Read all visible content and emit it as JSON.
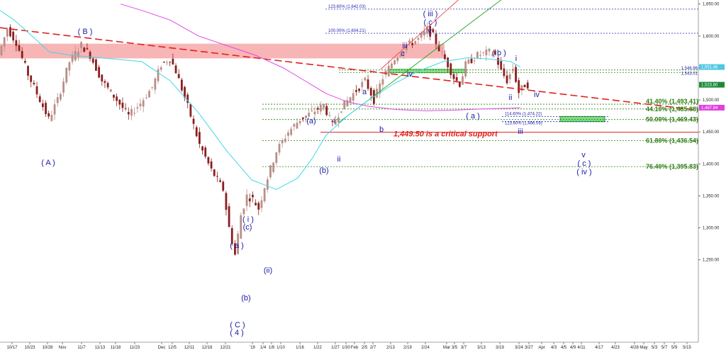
{
  "chart_data": {
    "type": "candlestick",
    "title": "",
    "xlabel": "",
    "ylabel": "",
    "ylim": [
      1225,
      1650
    ],
    "y_ticks": [
      "1,650.00",
      "1,600.00",
      "1,550.00",
      "1,500.00",
      "1,450.00",
      "1,400.00",
      "1,350.00",
      "1,300.00",
      "1,250.00"
    ],
    "y_tick_values": [
      1650,
      1600,
      1550,
      1500,
      1450,
      1400,
      1350,
      1300,
      1250
    ],
    "x_ticks": [
      "10/17",
      "10/23",
      "10/28",
      "Nov",
      "11/7",
      "11/13",
      "11/18",
      "11/23",
      "Dec",
      "12/5",
      "12/11",
      "12/16",
      "12/21",
      "'19",
      "1/4",
      "1/8",
      "1/10",
      "1/16",
      "1/22",
      "1/27",
      "1/30",
      "Feb",
      "2/5",
      "2/7",
      "2/13",
      "2/19",
      "2/24",
      "Mar",
      "3/5",
      "3/7",
      "3/13",
      "3/19",
      "3/24",
      "3/27",
      "Apr",
      "4/3",
      "4/5",
      "4/9",
      "4/11",
      "4/17",
      "4/23",
      "4/28",
      "May",
      "5/3",
      "5/7",
      "5/9",
      "5/15"
    ],
    "price_path": [
      [
        0,
        1570
      ],
      [
        3,
        1612
      ],
      [
        6,
        1590
      ],
      [
        10,
        1540
      ],
      [
        14,
        1500
      ],
      [
        17,
        1470
      ],
      [
        20,
        1500
      ],
      [
        24,
        1560
      ],
      [
        28,
        1586
      ],
      [
        31,
        1570
      ],
      [
        35,
        1530
      ],
      [
        40,
        1500
      ],
      [
        44,
        1475
      ],
      [
        48,
        1495
      ],
      [
        52,
        1520
      ],
      [
        55,
        1555
      ],
      [
        58,
        1565
      ],
      [
        60,
        1545
      ],
      [
        64,
        1490
      ],
      [
        68,
        1430
      ],
      [
        72,
        1390
      ],
      [
        76,
        1360
      ],
      [
        78,
        1300
      ],
      [
        80,
        1258
      ],
      [
        82,
        1320
      ],
      [
        84,
        1350
      ],
      [
        86,
        1345
      ],
      [
        88,
        1330
      ],
      [
        90,
        1365
      ],
      [
        94,
        1420
      ],
      [
        98,
        1450
      ],
      [
        102,
        1470
      ],
      [
        106,
        1480
      ],
      [
        110,
        1492
      ],
      [
        113,
        1460
      ],
      [
        116,
        1488
      ],
      [
        120,
        1510
      ],
      [
        124,
        1530
      ],
      [
        127,
        1500
      ],
      [
        130,
        1535
      ],
      [
        134,
        1565
      ],
      [
        138,
        1585
      ],
      [
        142,
        1595
      ],
      [
        145,
        1610
      ],
      [
        147,
        1600
      ],
      [
        149,
        1580
      ],
      [
        152,
        1555
      ],
      [
        154,
        1535
      ],
      [
        156,
        1525
      ],
      [
        158,
        1555
      ],
      [
        162,
        1570
      ],
      [
        166,
        1575
      ],
      [
        168,
        1570
      ],
      [
        170,
        1545
      ],
      [
        172,
        1530
      ],
      [
        174,
        1550
      ],
      [
        176,
        1512
      ],
      [
        178,
        1523.8
      ]
    ],
    "resistance_zone": [
      1565,
      1588
    ],
    "fib_levels": [
      {
        "label": "123.60% (1,642.03)",
        "value": 1642.03
      },
      {
        "label": "100.00% (1,604.21)",
        "value": 1604.21
      },
      {
        "label": "1,546.86",
        "value": 1546.86
      },
      {
        "label": "1,543.01",
        "value": 1543.01
      },
      {
        "label": "41.40% (1,493.41)",
        "value": 1493.41
      },
      {
        "label": "44.10% (1,485.88)",
        "value": 1485.88
      },
      {
        "label": "114.60% (1,474.22)",
        "value": 1474.22
      },
      {
        "label": "50.00% (1,469.43)",
        "value": 1469.43
      },
      {
        "label": "123.60% (1,466.09)",
        "value": 1466.09
      },
      {
        "label": "61.80% (1,436.54)",
        "value": 1436.54
      },
      {
        "label": "76.40% (1,395.83)",
        "value": 1395.83
      }
    ],
    "critical_support": {
      "value": 1449.5,
      "label": "1,449.50 is a critical support"
    },
    "price_tags": [
      {
        "label": "1,551.48",
        "value": 1551.48,
        "color": "#4fc8e0"
      },
      {
        "label": "1,523.80",
        "value": 1523.8,
        "color": "#1b8a3a"
      },
      {
        "label": "1,487.94",
        "value": 1487.94,
        "color": "#e040e0"
      }
    ],
    "target_zone": [
      1466.09,
      1474.22
    ],
    "wave_labels": [
      "( B )",
      "( A )",
      "( C )",
      "( 4 )",
      "( a )",
      "(b)",
      "(c)",
      "( i )",
      "(ii)",
      "(a)",
      "(b)",
      "i",
      "ii",
      "a",
      "b",
      "c",
      "iii",
      "iv",
      "v",
      "( iii )",
      "( c )",
      "( a )",
      "( b )",
      "i",
      "ii",
      "iii",
      "iv",
      "v",
      "( c )",
      "( iv )"
    ],
    "colors": {
      "up_candle": "#b88f88",
      "down_candle": "#8a1f1f",
      "trendline": "#e02020",
      "ma_cyan": "#40d8e8",
      "ma_magenta": "#e048e8",
      "channel_red": "#f04040",
      "channel_green": "#20a020",
      "fib_green": "#2e7d12",
      "fib_blue": "#2323b0",
      "wave_label": "#1a1aa8"
    }
  }
}
